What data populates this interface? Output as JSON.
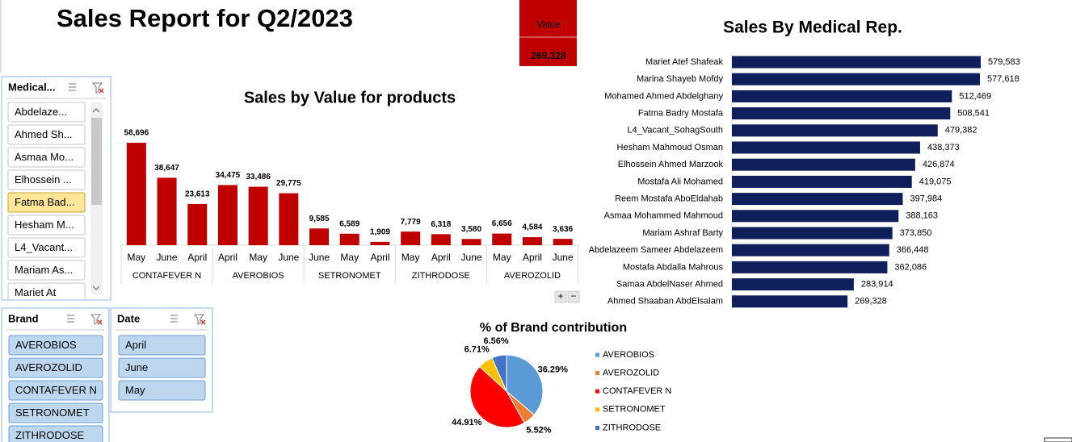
{
  "title": "Sales Report for Q2/2023",
  "kpi": {
    "label": "Value",
    "value": "269,328"
  },
  "slicers": [
    {
      "title": "Medical...",
      "items": [
        {
          "label": "Abdelaze...",
          "selected": false
        },
        {
          "label": "Ahmed Sh...",
          "selected": false
        },
        {
          "label": "Asmaa Mo...",
          "selected": false
        },
        {
          "label": "Elhossein ...",
          "selected": false
        },
        {
          "label": "Fatma Bad...",
          "selected": true
        },
        {
          "label": "Hesham M...",
          "selected": false
        },
        {
          "label": "L4_Vacant...",
          "selected": false
        },
        {
          "label": "Mariam As...",
          "selected": false
        },
        {
          "label": "Mariet At",
          "selected": false
        }
      ]
    },
    {
      "title": "Brand",
      "items": [
        {
          "label": "AVEROBIOS",
          "selected": false
        },
        {
          "label": "AVEROZOLID",
          "selected": false
        },
        {
          "label": "CONTAFEVER N",
          "selected": false
        },
        {
          "label": "SETRONOMET",
          "selected": false
        },
        {
          "label": "ZITHRODOSE",
          "selected": false
        }
      ]
    },
    {
      "title": "Date",
      "items": [
        {
          "label": "April",
          "selected": false
        },
        {
          "label": "June",
          "selected": false
        },
        {
          "label": "May",
          "selected": false
        }
      ]
    }
  ],
  "chart_controls": [
    "+",
    "−"
  ],
  "chart_data": [
    {
      "type": "grouped-bar",
      "title": "Sales by Value  for products",
      "color": "#c00000",
      "groups": [
        {
          "name": "CONTAFEVER N",
          "categories": [
            "May",
            "June",
            "April"
          ],
          "values": [
            58696,
            38647,
            23613
          ],
          "value_labels": [
            "58,696",
            "38,647",
            "23,613"
          ]
        },
        {
          "name": "AVEROBIOS",
          "categories": [
            "April",
            "May",
            "June"
          ],
          "values": [
            34475,
            33486,
            29775
          ],
          "value_labels": [
            "34,475",
            "33,486",
            "29,775"
          ]
        },
        {
          "name": "SETRONOMET",
          "categories": [
            "June",
            "May",
            "April"
          ],
          "values": [
            9585,
            6589,
            1909
          ],
          "value_labels": [
            "9,585",
            "6,589",
            "1,909"
          ]
        },
        {
          "name": "ZITHRODOSE",
          "categories": [
            "May",
            "April",
            "June"
          ],
          "values": [
            7779,
            6318,
            3580
          ],
          "value_labels": [
            "7,779",
            "6,318",
            "3,580"
          ]
        },
        {
          "name": "AVEROZOLID",
          "categories": [
            "May",
            "April",
            "June"
          ],
          "values": [
            6656,
            4584,
            3636
          ],
          "value_labels": [
            "6,656",
            "4,584",
            "3,636"
          ]
        }
      ]
    },
    {
      "type": "hbar",
      "title": "Sales By Medical Rep.",
      "color": "#0f1f5c",
      "categories": [
        "Mariet Atef Shafeak",
        "Marina Shayeb Mofdy",
        "Mohamed Ahmed Abdelghany",
        "Fatma Badry Mostafa",
        "L4_Vacant_SohagSouth",
        "Hesham Mahmoud Osman",
        "Elhossein Ahmed Marzook",
        "Mostafa Ali Mohamed",
        "Reem Mostafa AboEldahab",
        "Asmaa Mohammed Mahmoud",
        "Mariam Ashraf Barty",
        "Abdelazeem Sameer Abdelazeem",
        "Mostafa Abdalla Mahrous",
        "Samaa AbdelNaser Ahmed",
        "Ahmed Shaaban AbdElsalam"
      ],
      "values": [
        579583,
        577618,
        512469,
        508541,
        479382,
        438373,
        426874,
        419075,
        397984,
        388163,
        373850,
        366448,
        362086,
        283914,
        269328
      ],
      "value_labels": [
        "579,583",
        "577,618",
        "512,469",
        "508,541",
        "479,382",
        "438,373",
        "426,874",
        "419,075",
        "397,984",
        "388,163",
        "373,850",
        "366,448",
        "362,086",
        "283,914",
        "269,328"
      ]
    },
    {
      "type": "pie",
      "title": "% of Brand contribution",
      "categories": [
        "AVEROBIOS",
        "AVEROZOLID",
        "CONTAFEVER N",
        "SETRONOMET",
        "ZITHRODOSE"
      ],
      "values": [
        36.29,
        5.52,
        44.91,
        6.71,
        6.56
      ],
      "value_labels": [
        "36.29%",
        "5.52%",
        "44.91%",
        "6.71%",
        "6.56%"
      ],
      "colors": [
        "#5b9bd5",
        "#ed7d31",
        "#ff0000",
        "#ffc000",
        "#4472c4"
      ]
    }
  ]
}
